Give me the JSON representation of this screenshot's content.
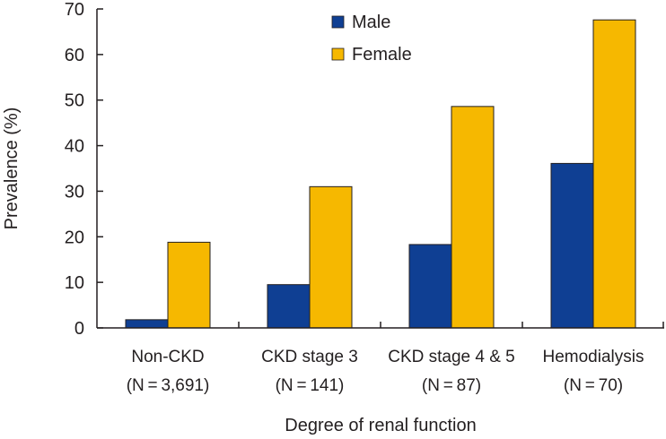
{
  "chart_data": {
    "type": "bar",
    "title": "",
    "xlabel": "Degree of renal function",
    "ylabel": "Prevalence (%)",
    "ylim": [
      0,
      70
    ],
    "yticks": [
      0,
      10,
      20,
      30,
      40,
      50,
      60,
      70
    ],
    "categories": [
      {
        "name": "Non-CKD",
        "n": "(N = 3,691)"
      },
      {
        "name": "CKD stage 3",
        "n": "(N = 141)"
      },
      {
        "name": "CKD stage 4 & 5",
        "n": "(N = 87)"
      },
      {
        "name": "Hemodialysis",
        "n": "(N = 70)"
      }
    ],
    "series": [
      {
        "name": "Male",
        "color": "#0f3f93",
        "values": [
          1.8,
          9.5,
          18.3,
          36.1
        ]
      },
      {
        "name": "Female",
        "color": "#f6b800",
        "values": [
          18.8,
          31.0,
          48.6,
          67.6
        ]
      }
    ],
    "legend": "top-center"
  }
}
